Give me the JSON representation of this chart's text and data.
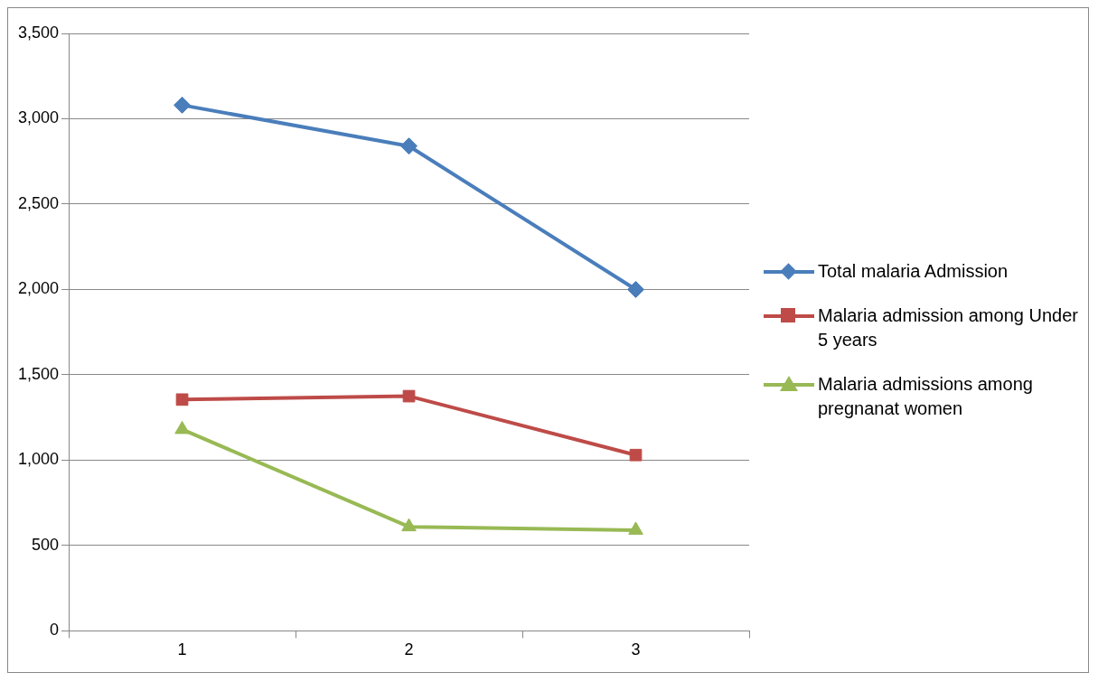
{
  "chart_data": {
    "type": "line",
    "categories": [
      "1",
      "2",
      "3"
    ],
    "series": [
      {
        "name": "Total malaria  Admission",
        "color": "#4a7ebb",
        "marker": "diamond",
        "values": [
          3080,
          2840,
          2000
        ]
      },
      {
        "name": "Malaria admission among Under 5 years",
        "color": "#be4b48",
        "marker": "square",
        "values": [
          1355,
          1375,
          1030
        ]
      },
      {
        "name": "Malaria admissions among pregnanat women",
        "color": "#98b954",
        "marker": "triangle",
        "values": [
          1180,
          610,
          590
        ]
      }
    ],
    "ylim": [
      0,
      3500
    ],
    "yticks": [
      {
        "value": 0,
        "label": "0"
      },
      {
        "value": 500,
        "label": "500"
      },
      {
        "value": 1000,
        "label": "1,000"
      },
      {
        "value": 1500,
        "label": "1,500"
      },
      {
        "value": 2000,
        "label": "2,000"
      },
      {
        "value": 2500,
        "label": "2,500"
      },
      {
        "value": 3000,
        "label": "3,000"
      },
      {
        "value": 3500,
        "label": "3,500"
      }
    ],
    "grid": "y",
    "legend": "right",
    "line_style": "solid"
  }
}
